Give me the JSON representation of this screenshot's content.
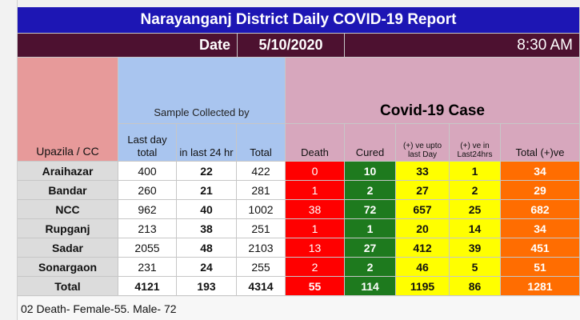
{
  "report": {
    "title": "Narayanganj District Daily COVID-19 Report",
    "date_label": "Date",
    "date_value": "5/10/2020",
    "time_value": "8:30 AM"
  },
  "headers": {
    "upazila": "Upazila / CC",
    "sample_collected_by": "Sample Collected by",
    "covid_case": "Covid-19 Case",
    "last_day_total": "Last day total",
    "in_last_24_hr": "in last 24 hr",
    "total": "Total",
    "death": "Death",
    "cured": "Cured",
    "positive_upto_last_day": "(+) ve upto last Day",
    "positive_last_24hrs": "(+) ve in Last24hrs",
    "total_positive": "Total (+)ve"
  },
  "rows": [
    {
      "name": "Araihazar",
      "last_day": "400",
      "last24": "22",
      "total": "422",
      "death": "0",
      "cured": "10",
      "upto": "33",
      "in24": "1",
      "tpos": "34"
    },
    {
      "name": "Bandar",
      "last_day": "260",
      "last24": "21",
      "total": "281",
      "death": "1",
      "cured": "2",
      "upto": "27",
      "in24": "2",
      "tpos": "29"
    },
    {
      "name": "NCC",
      "last_day": "962",
      "last24": "40",
      "total": "1002",
      "death": "38",
      "cured": "72",
      "upto": "657",
      "in24": "25",
      "tpos": "682"
    },
    {
      "name": "Rupganj",
      "last_day": "213",
      "last24": "38",
      "total": "251",
      "death": "1",
      "cured": "1",
      "upto": "20",
      "in24": "14",
      "tpos": "34"
    },
    {
      "name": "Sadar",
      "last_day": "2055",
      "last24": "48",
      "total": "2103",
      "death": "13",
      "cured": "27",
      "upto": "412",
      "in24": "39",
      "tpos": "451"
    },
    {
      "name": "Sonargaon",
      "last_day": "231",
      "last24": "24",
      "total": "255",
      "death": "2",
      "cured": "2",
      "upto": "46",
      "in24": "5",
      "tpos": "51"
    }
  ],
  "total_row": {
    "name": "Total",
    "last_day": "4121",
    "last24": "193",
    "total": "4314",
    "death": "55",
    "cured": "114",
    "upto": "1195",
    "in24": "86",
    "tpos": "1281"
  },
  "footnote": "02 Death- Female-55. Male- 72",
  "colors": {
    "title_bar": "#1d16b4",
    "date_bar": "#4d1130",
    "death": "#ff0000",
    "cured": "#1e7a1e",
    "upto": "#ffff00",
    "total_positive": "#ff6d01",
    "sample_header": "#a9c5ef",
    "case_header": "#d7a7bd"
  }
}
